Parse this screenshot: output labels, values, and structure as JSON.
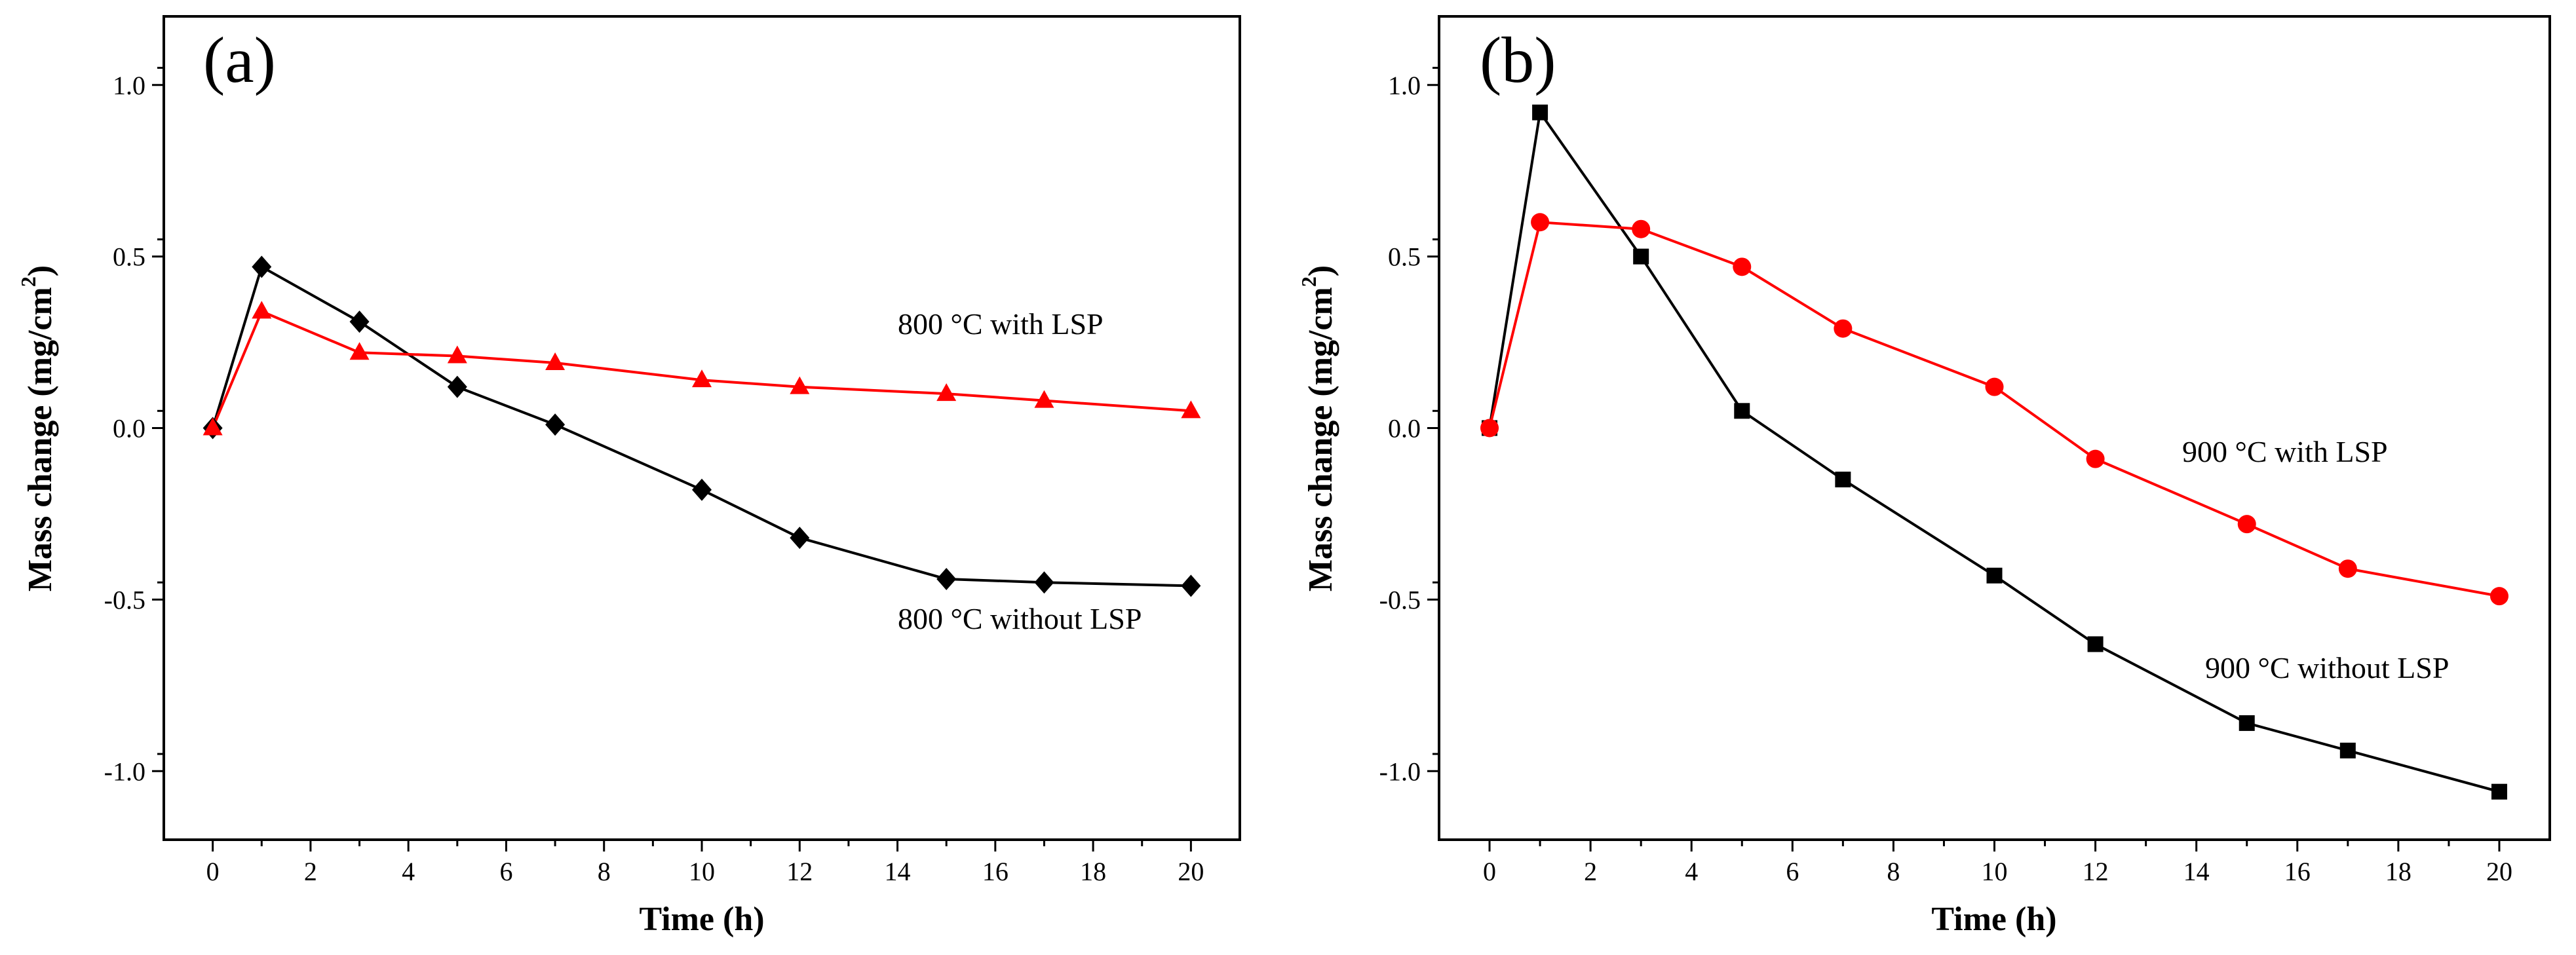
{
  "chart_data": [
    {
      "type": "line",
      "panel_label": "(a)",
      "xlabel": "Time (h)",
      "ylabel_main": "Mass change (mg/cm",
      "ylabel_sup": "2",
      "ylabel_end": ")",
      "xlim": [
        -1,
        21
      ],
      "ylim": [
        -1.2,
        1.2
      ],
      "xticks": [
        0,
        2,
        4,
        6,
        8,
        10,
        12,
        14,
        16,
        18,
        20
      ],
      "xtick_labels": [
        "0",
        "2",
        "4",
        "6",
        "8",
        "10",
        "12",
        "14",
        "16",
        "18",
        "20"
      ],
      "yticks": [
        -1.0,
        -0.5,
        0.0,
        0.5,
        1.0
      ],
      "ytick_labels": [
        "-1.0",
        "-0.5",
        "0.0",
        "0.5",
        "1.0"
      ],
      "series": [
        {
          "name": "800 °C without LSP",
          "color": "#000000",
          "marker": "diamond",
          "x": [
            0,
            1,
            3,
            5,
            7,
            10,
            12,
            15,
            17,
            20
          ],
          "y": [
            0.0,
            0.47,
            0.31,
            0.12,
            0.01,
            -0.18,
            -0.32,
            -0.44,
            -0.45,
            -0.46
          ]
        },
        {
          "name": "800 °C with LSP",
          "color": "#ff0000",
          "marker": "triangle",
          "x": [
            0,
            1,
            3,
            5,
            7,
            10,
            12,
            15,
            17,
            20
          ],
          "y": [
            0.0,
            0.34,
            0.22,
            0.21,
            0.19,
            0.14,
            0.12,
            0.1,
            0.08,
            0.05
          ]
        }
      ],
      "annotations": [
        "800 °C with LSP",
        "800 °C without LSP"
      ]
    },
    {
      "type": "line",
      "panel_label": "(b)",
      "xlabel": "Time (h)",
      "ylabel_main": "Mass change (mg/cm",
      "ylabel_sup": "2",
      "ylabel_end": ")",
      "xlim": [
        -1,
        21
      ],
      "ylim": [
        -1.2,
        1.2
      ],
      "xticks": [
        0,
        2,
        4,
        6,
        8,
        10,
        12,
        14,
        16,
        18,
        20
      ],
      "xtick_labels": [
        "0",
        "2",
        "4",
        "6",
        "8",
        "10",
        "12",
        "14",
        "16",
        "18",
        "20"
      ],
      "yticks": [
        -1.0,
        -0.5,
        0.0,
        0.5,
        1.0
      ],
      "ytick_labels": [
        "-1.0",
        "-0.5",
        "0.0",
        "0.5",
        "1.0"
      ],
      "series": [
        {
          "name": "900 °C without LSP",
          "color": "#000000",
          "marker": "square",
          "x": [
            0,
            1,
            3,
            5,
            7,
            10,
            12,
            15,
            17,
            20
          ],
          "y": [
            0.0,
            0.92,
            0.5,
            0.05,
            -0.15,
            -0.43,
            -0.63,
            -0.86,
            -0.94,
            -1.06
          ]
        },
        {
          "name": "900 °C with LSP",
          "color": "#ff0000",
          "marker": "circle",
          "x": [
            0,
            1,
            3,
            5,
            7,
            10,
            12,
            15,
            17,
            20
          ],
          "y": [
            0.0,
            0.6,
            0.58,
            0.47,
            0.29,
            0.12,
            -0.09,
            -0.28,
            -0.41,
            -0.49
          ]
        }
      ],
      "annotations": [
        "900 °C with LSP",
        "900 °C without LSP"
      ]
    }
  ]
}
